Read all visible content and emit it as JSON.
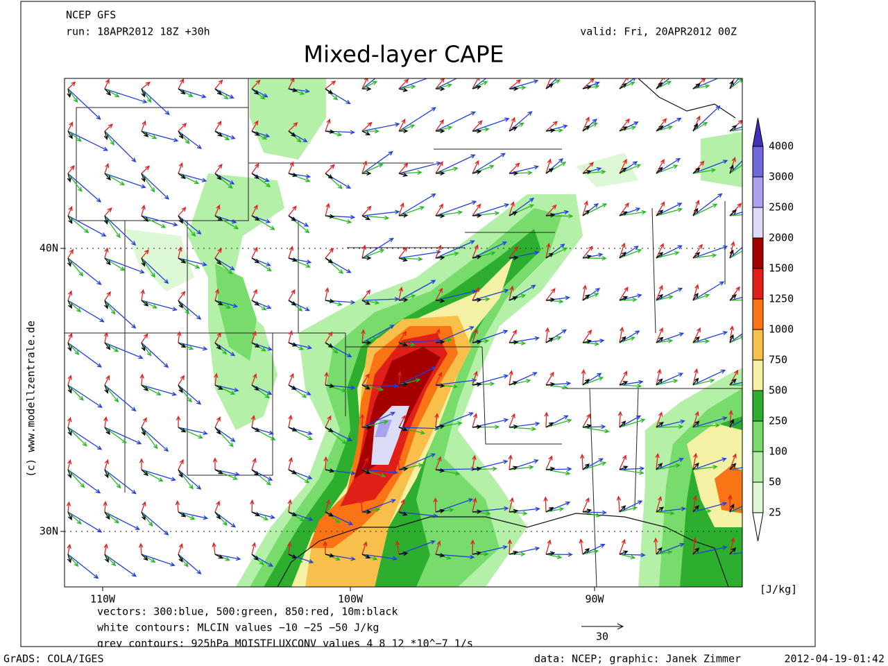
{
  "header": {
    "model": "NCEP GFS",
    "run": "run: 18APR2012 18Z +30h",
    "valid": "valid: Fri, 20APR2012 00Z",
    "title": "Mixed-layer CAPE"
  },
  "map": {
    "lon_labels": [
      "110W",
      "100W",
      "90W"
    ],
    "lat_labels": [
      "40N",
      "30N"
    ]
  },
  "colorbar": {
    "levels": [
      25,
      50,
      100,
      250,
      500,
      750,
      1000,
      1250,
      1500,
      2000,
      2500,
      3000,
      4000
    ],
    "colors": [
      "#ffffff",
      "#dcf8d4",
      "#b4f0a8",
      "#78dc6c",
      "#2eae2e",
      "#f4f0a4",
      "#f8c04a",
      "#f87414",
      "#e02018",
      "#a40000",
      "#dcdcf6",
      "#aaa2f0",
      "#7068dc",
      "#4030bc"
    ],
    "unit": "[J/kg]"
  },
  "notes": [
    "vectors: 300:blue, 500:green, 850:red, 10m:black",
    "white contours: MLCIN values −10 −25 −50 J/kg",
    "grey contours: 925hPa MOISTFLUXCONV values 4 8 12 *10^−7 1/s"
  ],
  "vector_scale": "30",
  "credit": "(c) www.modellzentrale.de",
  "footer": {
    "software": "GrADS: COLA/IGES",
    "source": "data: NCEP; graphic: Janek Zimmer",
    "timestamp": "2012-04-19-01:42"
  }
}
